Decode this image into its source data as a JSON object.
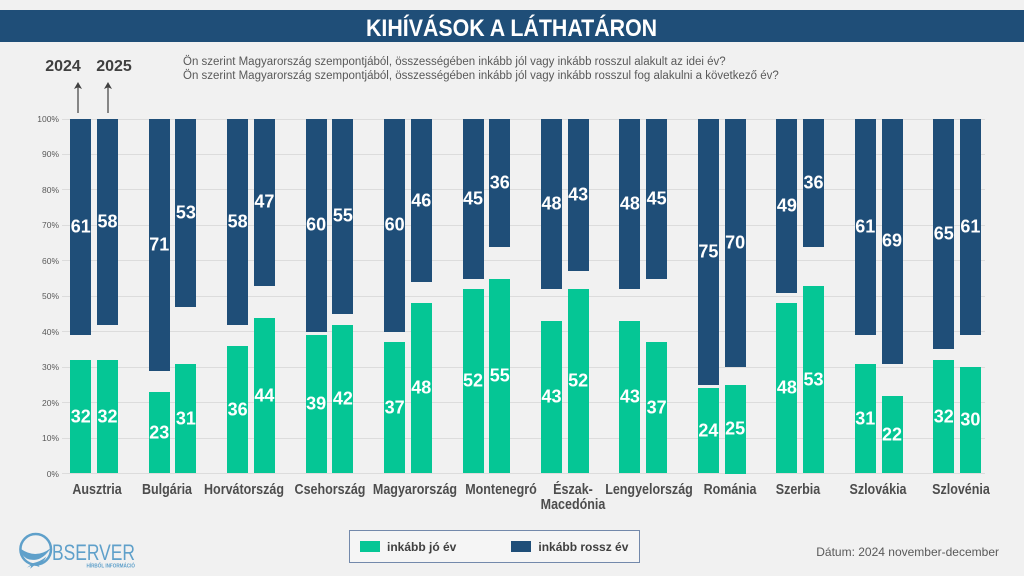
{
  "header": {
    "title": "KIHÍVÁSOK A LÁTHATÁRON",
    "bg_color": "#1F4E78",
    "text_color": "#FFFFFF"
  },
  "annotations": {
    "year_left": "2024",
    "year_right": "2025",
    "question_line1": "Ön szerint Magyarország szempontjából, összességében inkább jól vagy inkább rosszul alakult az idei év?",
    "question_line2": "Ön szerint Magyarország szempontjából, összességében inkább jól vagy inkább rosszul fog alakulni a következő év?"
  },
  "chart_data": {
    "type": "bar",
    "title": "KIHÍVÁSOK A LÁTHATÁRON",
    "categories": [
      "Ausztria",
      "Bulgária",
      "Horvátország",
      "Csehország",
      "Magyarország",
      "Montenegró",
      "Észak-Macedónia",
      "Lengyelország",
      "Románia",
      "Szerbia",
      "Szlovákia",
      "Szlovénia"
    ],
    "series": [
      {
        "name": "inkább jó év",
        "year": "2024",
        "color": "#05C695",
        "anchor": "bottom",
        "values": [
          32,
          23,
          36,
          39,
          37,
          52,
          43,
          43,
          24,
          48,
          31,
          32
        ]
      },
      {
        "name": "inkább jó év",
        "year": "2025",
        "color": "#05C695",
        "anchor": "bottom",
        "values": [
          32,
          31,
          44,
          42,
          48,
          55,
          52,
          37,
          25,
          53,
          22,
          30
        ]
      },
      {
        "name": "inkább rossz év",
        "year": "2024",
        "color": "#1F4E78",
        "anchor": "top",
        "values": [
          61,
          71,
          58,
          60,
          60,
          45,
          48,
          48,
          75,
          49,
          61,
          65
        ]
      },
      {
        "name": "inkább rossz év",
        "year": "2025",
        "color": "#1F4E78",
        "anchor": "top",
        "values": [
          58,
          53,
          47,
          55,
          46,
          36,
          43,
          45,
          70,
          36,
          69,
          61
        ]
      }
    ],
    "y_ticks": [
      "0%",
      "10%",
      "20%",
      "30%",
      "40%",
      "50%",
      "60%",
      "70%",
      "80%",
      "90%",
      "100%"
    ],
    "ylim": [
      0,
      100
    ],
    "grid": "horizontal",
    "value_label_style": "white bold, centered in each segment",
    "legend_position": "bottom-center"
  },
  "legend": {
    "items": [
      {
        "label": "inkább jó év",
        "color": "#05C695"
      },
      {
        "label": "inkább rossz év",
        "color": "#1F4E78"
      }
    ]
  },
  "logo": {
    "text": "BSERVER",
    "tagline": "HÍRBŐL INFORMÁCIÓ",
    "color": "#5FA0CA"
  },
  "footer": {
    "date": "Dátum: 2024 november-december"
  }
}
